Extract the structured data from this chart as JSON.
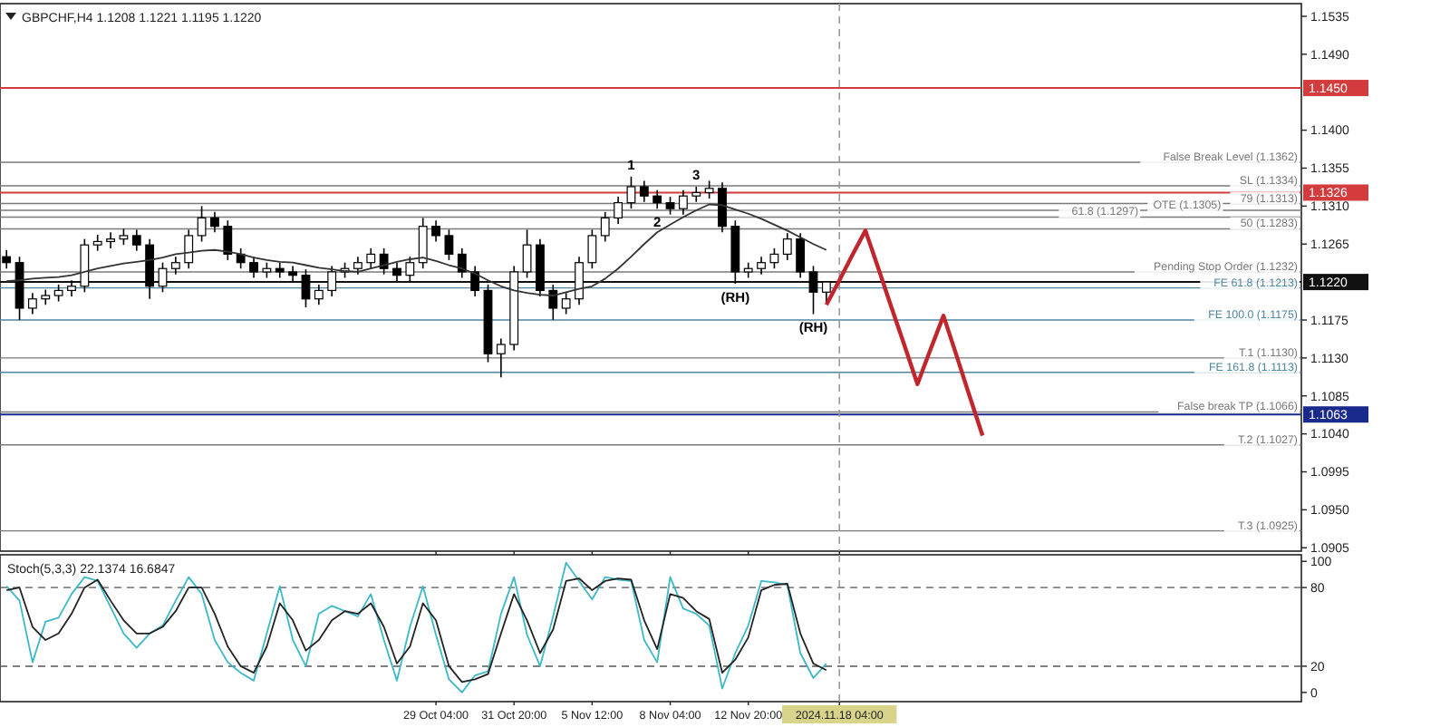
{
  "chart_data": [
    {
      "type": "candlestick",
      "title": "GBPCHF,H4  1.1208 1.1221 1.1195 1.1220",
      "tick_labels": "y",
      "categories": [
        null,
        null,
        null,
        null,
        null,
        null,
        null,
        null,
        null,
        null,
        null,
        null,
        null,
        null,
        null,
        null,
        null,
        null,
        null,
        null,
        null,
        null,
        null,
        null,
        null,
        null,
        null,
        null,
        null,
        null,
        null,
        null,
        null,
        "29 Oct 04:00",
        null,
        null,
        null,
        null,
        null,
        "31 Oct 20:00",
        null,
        null,
        null,
        null,
        null,
        "5 Nov 12:00",
        null,
        null,
        null,
        null,
        null,
        "8 Nov 04:00",
        null,
        null,
        null,
        null,
        null,
        "12 Nov 20:00",
        null,
        null,
        null,
        null,
        null,
        null,
        "2024.11.18 04:00",
        null,
        null,
        null,
        null,
        null,
        null,
        null,
        null,
        null,
        null,
        null,
        null,
        null,
        null,
        null,
        null,
        null,
        null,
        null,
        null,
        null,
        null,
        null,
        null,
        null,
        null,
        null,
        null,
        null,
        null,
        null,
        null,
        null,
        null,
        null
      ],
      "ylim": [
        1.0901,
        1.155
      ],
      "yticks": [
        1.1535,
        {
          "value": 1.149,
          "label": "1.1490"
        },
        {
          "value": 1.14,
          "label": "1.1400"
        },
        1.1355,
        {
          "value": 1.131,
          "label": "1.1310"
        },
        1.1265,
        1.1175,
        {
          "value": 1.113,
          "label": "1.1130"
        },
        1.1085,
        {
          "value": 1.104,
          "label": "1.1040"
        },
        1.0995,
        {
          "value": 1.095,
          "label": "1.0950"
        },
        1.0905
      ],
      "ohlc": [
        [
          1.125,
          1.1258,
          1.1236,
          1.1243
        ],
        [
          1.1243,
          1.125,
          1.1175,
          1.1189
        ],
        [
          1.1189,
          1.1207,
          1.1182,
          1.12
        ],
        [
          1.12,
          1.1211,
          1.1193,
          1.1204
        ],
        [
          1.1204,
          1.1217,
          1.1197,
          1.121
        ],
        [
          1.121,
          1.1222,
          1.1203,
          1.1215
        ],
        [
          1.1215,
          1.1271,
          1.1208,
          1.1264
        ],
        [
          1.1264,
          1.1276,
          1.1257,
          1.1268
        ],
        [
          1.1268,
          1.1279,
          1.126,
          1.1271
        ],
        [
          1.1271,
          1.1283,
          1.1264,
          1.1275
        ],
        [
          1.1275,
          1.1282,
          1.1257,
          1.1264
        ],
        [
          1.1264,
          1.1271,
          1.12,
          1.1215
        ],
        [
          1.1215,
          1.1243,
          1.1208,
          1.1236
        ],
        [
          1.1236,
          1.125,
          1.1229,
          1.1243
        ],
        [
          1.1243,
          1.1282,
          1.1236,
          1.1275
        ],
        [
          1.1275,
          1.131,
          1.1268,
          1.1296
        ],
        [
          1.1296,
          1.1303,
          1.1279,
          1.1286
        ],
        [
          1.1286,
          1.1293,
          1.1246,
          1.1253
        ],
        [
          1.1253,
          1.126,
          1.1236,
          1.1243
        ],
        [
          1.1243,
          1.125,
          1.1225,
          1.1232
        ],
        [
          1.1232,
          1.1243,
          1.1225,
          1.1236
        ],
        [
          1.1236,
          1.1243,
          1.1225,
          1.1232
        ],
        [
          1.1232,
          1.1239,
          1.1221,
          1.1228
        ],
        [
          1.1228,
          1.1235,
          1.119,
          1.12
        ],
        [
          1.12,
          1.1217,
          1.1193,
          1.121
        ],
        [
          1.121,
          1.1239,
          1.1203,
          1.1232
        ],
        [
          1.1232,
          1.1243,
          1.1225,
          1.1236
        ],
        [
          1.1236,
          1.125,
          1.1229,
          1.1243
        ],
        [
          1.1243,
          1.126,
          1.1236,
          1.1253
        ],
        [
          1.1253,
          1.126,
          1.1229,
          1.1236
        ],
        [
          1.1236,
          1.1243,
          1.1221,
          1.1228
        ],
        [
          1.1228,
          1.125,
          1.1221,
          1.1243
        ],
        [
          1.1243,
          1.1296,
          1.1236,
          1.1286
        ],
        [
          1.1286,
          1.1293,
          1.1268,
          1.1275
        ],
        [
          1.1275,
          1.1282,
          1.1246,
          1.1253
        ],
        [
          1.1253,
          1.126,
          1.1225,
          1.1232
        ],
        [
          1.1232,
          1.1239,
          1.1203,
          1.121
        ],
        [
          1.121,
          1.1217,
          1.1125,
          1.1135
        ],
        [
          1.1135,
          1.1153,
          1.1107,
          1.1146
        ],
        [
          1.1146,
          1.1239,
          1.1139,
          1.1232
        ],
        [
          1.1232,
          1.1282,
          1.1225,
          1.1264
        ],
        [
          1.1264,
          1.1271,
          1.1203,
          1.121
        ],
        [
          1.121,
          1.1217,
          1.1175,
          1.1189
        ],
        [
          1.1189,
          1.1207,
          1.1182,
          1.12
        ],
        [
          1.12,
          1.125,
          1.1193,
          1.1243
        ],
        [
          1.1243,
          1.1282,
          1.1236,
          1.1275
        ],
        [
          1.1275,
          1.1303,
          1.1268,
          1.1296
        ],
        [
          1.1296,
          1.1321,
          1.1289,
          1.1314
        ],
        [
          1.1314,
          1.1345,
          1.1307,
          1.1333
        ],
        [
          1.1333,
          1.134,
          1.1315,
          1.1322
        ],
        [
          1.1322,
          1.1329,
          1.1307,
          1.1314
        ],
        [
          1.1314,
          1.1321,
          1.13,
          1.1307
        ],
        [
          1.1307,
          1.1329,
          1.13,
          1.1322
        ],
        [
          1.1322,
          1.1333,
          1.1315,
          1.1326
        ],
        [
          1.1326,
          1.134,
          1.1319,
          1.1331
        ],
        [
          1.1331,
          1.1338,
          1.1279,
          1.1286
        ],
        [
          1.1286,
          1.1293,
          1.1218,
          1.1232
        ],
        [
          1.1232,
          1.1243,
          1.1225,
          1.1236
        ],
        [
          1.1236,
          1.125,
          1.1229,
          1.1243
        ],
        [
          1.1243,
          1.126,
          1.1236,
          1.1253
        ],
        [
          1.1253,
          1.1278,
          1.1246,
          1.1271
        ],
        [
          1.1271,
          1.1278,
          1.1225,
          1.1232
        ],
        [
          1.1232,
          1.1239,
          1.1182,
          1.1208
        ],
        [
          1.1208,
          1.1221,
          1.1195,
          1.122
        ],
        null,
        null,
        null,
        null,
        null,
        null,
        null,
        null,
        null,
        null,
        null,
        null,
        null,
        null,
        null,
        null,
        null,
        null,
        null,
        null,
        null,
        null,
        null,
        null,
        null,
        null,
        null,
        null,
        null,
        null,
        null,
        null,
        null,
        null,
        null,
        null
      ],
      "series": [
        {
          "type": "line",
          "color": "#333333",
          "values": [
            1.1221,
            1.1222,
            1.1224,
            1.1225,
            1.1226,
            1.1228,
            1.1232,
            1.1236,
            1.1239,
            1.1242,
            1.1244,
            1.1246,
            1.1249,
            1.1253,
            1.1255,
            1.1257,
            1.1258,
            1.1256,
            1.1253,
            1.1249,
            1.1246,
            1.1244,
            1.1243,
            1.124,
            1.1237,
            1.1235,
            1.1233,
            1.1232,
            1.1236,
            1.124,
            1.1244,
            1.1247,
            1.1249,
            1.1245,
            1.124,
            1.1236,
            1.123,
            1.1222,
            1.1215,
            1.121,
            1.1207,
            1.1205,
            1.1204,
            1.1208,
            1.1212,
            1.1215,
            1.1224,
            1.1236,
            1.125,
            1.1265,
            1.1279,
            1.1288,
            1.1297,
            1.1305,
            1.1312,
            1.1311,
            1.1306,
            1.1301,
            1.1295,
            1.1288,
            1.1281,
            1.1273,
            1.1265,
            1.1258,
            null,
            null,
            null,
            null,
            null,
            null,
            null,
            null,
            null,
            null,
            null,
            null,
            null,
            null,
            null,
            null,
            null,
            null,
            null,
            null,
            null,
            null,
            null,
            null,
            null,
            null,
            null,
            null,
            null,
            null,
            null,
            null,
            null,
            null,
            null,
            null
          ]
        },
        {
          "type": "line",
          "color": "#c0262d",
          "values": [
            null,
            null,
            null,
            null,
            null,
            null,
            null,
            null,
            null,
            null,
            null,
            null,
            null,
            null,
            null,
            null,
            null,
            null,
            null,
            null,
            null,
            null,
            null,
            null,
            null,
            null,
            null,
            null,
            null,
            null,
            null,
            null,
            null,
            null,
            null,
            null,
            null,
            null,
            null,
            null,
            null,
            null,
            null,
            null,
            null,
            null,
            null,
            null,
            null,
            null,
            null,
            null,
            null,
            null,
            null,
            null,
            null,
            null,
            null,
            null,
            null,
            null,
            null,
            1.1193,
            1.1222,
            1.1252,
            1.1281,
            1.1236,
            1.119,
            1.1145,
            1.1099,
            1.114,
            1.118,
            1.1133,
            1.1085,
            1.1038,
            null,
            null,
            null,
            null,
            null,
            null,
            null,
            null,
            null,
            null,
            null,
            null,
            null,
            null,
            null,
            null,
            null,
            null,
            null,
            null,
            null,
            null,
            null,
            null
          ]
        }
      ],
      "ref_lines": [
        {
          "axis": "y",
          "value": 1.145,
          "label": "1.1450",
          "color": "#d23c3c",
          "line_style": "solid"
        },
        {
          "axis": "y",
          "value": 1.1326,
          "label": "1.1326",
          "color": "#d23c3c",
          "line_style": "solid"
        },
        {
          "axis": "y",
          "value": 1.122,
          "label": "1.1220",
          "color": "#111111",
          "line_style": "solid"
        },
        {
          "axis": "y",
          "value": 1.1063,
          "label": "1.1063",
          "color": "#1a2a8c",
          "line_style": "solid"
        },
        {
          "axis": "y",
          "value": 1.1362,
          "label": "False Break Level (1.1362)",
          "color": "#7a7a7a"
        },
        {
          "axis": "y",
          "value": 1.1334,
          "label": "SL (1.1334)",
          "color": "#7a7a7a"
        },
        {
          "axis": "y",
          "value": 1.1313,
          "label": "79 (1.1313)",
          "color": "#7a7a7a"
        },
        {
          "axis": "y",
          "value": 1.1305,
          "label": "OTE (1.1305)",
          "color": "#7a7a7a"
        },
        {
          "axis": "y",
          "value": 1.1297,
          "label": "61.8 (1.1297)",
          "color": "#7a7a7a"
        },
        {
          "axis": "y",
          "value": 1.1283,
          "label": "50 (1.1283)",
          "color": "#7a7a7a"
        },
        {
          "axis": "y",
          "value": 1.1232,
          "label": "Pending Stop Order (1.1232)",
          "color": "#7a7a7a"
        },
        {
          "axis": "y",
          "value": 1.1213,
          "label": "FE 61.8 (1.1213)",
          "color": "#4f86a0"
        },
        {
          "axis": "y",
          "value": 1.1175,
          "label": "FE 100.0 (1.1175)",
          "color": "#4f86a0"
        },
        {
          "axis": "y",
          "value": 1.113,
          "label": "T.1 (1.1130)",
          "color": "#7a7a7a"
        },
        {
          "axis": "y",
          "value": 1.1113,
          "label": "FE 161.8 (1.1113)",
          "color": "#4f86a0"
        },
        {
          "axis": "y",
          "value": 1.1066,
          "label": "False break TP (1.1066)",
          "color": "#7a7a7a"
        },
        {
          "axis": "y",
          "value": 1.1027,
          "label": "T.2 (1.1027)",
          "color": "#7a7a7a"
        },
        {
          "axis": "y",
          "value": 1.0925,
          "label": "T.3 (1.0925)",
          "color": "#7a7a7a"
        },
        {
          "axis": "x",
          "value": "2024.11.18 04:00",
          "color": "#999999",
          "line_style": "dashed"
        }
      ],
      "annotations": [
        "1",
        "2",
        "3",
        "(RH)",
        "(RH)"
      ]
    },
    {
      "type": "line",
      "title": "Stoch(5,3,3) 22.1374 16.6847",
      "categories": [
        null,
        null,
        null,
        null,
        null,
        null,
        null,
        null,
        null,
        null,
        null,
        null,
        null,
        null,
        null,
        null,
        null,
        null,
        null,
        null,
        null,
        null,
        null,
        null,
        null,
        null,
        null,
        null,
        null,
        null,
        null,
        null,
        null,
        "29 Oct 04:00",
        null,
        null,
        null,
        null,
        null,
        "31 Oct 20:00",
        null,
        null,
        null,
        null,
        null,
        "5 Nov 12:00",
        null,
        null,
        null,
        null,
        null,
        "8 Nov 04:00",
        null,
        null,
        null,
        null,
        null,
        "12 Nov 20:00",
        null,
        null,
        null,
        null,
        null,
        null,
        "2024.11.18 04:00",
        null,
        null,
        null,
        null,
        null,
        null,
        null,
        null,
        null,
        null,
        null,
        null,
        null,
        null,
        null,
        null,
        null,
        null,
        null,
        null,
        null,
        null,
        null,
        null,
        null,
        null,
        null,
        null,
        null,
        null,
        null,
        null,
        null,
        null,
        null
      ],
      "ylim": [
        -7,
        105
      ],
      "yticks": [
        0,
        20,
        80,
        100
      ],
      "series": [
        {
          "color": "#3cb8c8",
          "values": [
            81,
            70,
            23,
            54,
            57,
            75,
            88,
            85,
            65,
            45,
            34,
            45,
            51,
            70,
            88,
            75,
            40,
            23,
            15,
            9,
            45,
            81,
            40,
            20,
            60,
            66,
            62,
            58,
            75,
            40,
            9,
            50,
            81,
            44,
            10,
            0,
            13,
            16,
            60,
            88,
            44,
            20,
            58,
            99,
            85,
            71,
            88,
            86,
            85,
            40,
            23,
            88,
            64,
            60,
            51,
            3,
            30,
            51,
            85,
            84,
            82,
            30,
            11,
            22,
            null,
            null,
            null,
            null,
            null,
            null,
            null,
            null,
            null,
            null,
            null,
            null,
            null,
            null,
            null,
            null,
            null,
            null,
            null,
            null,
            null,
            null,
            null,
            null,
            null,
            null,
            null,
            null,
            null,
            null,
            null,
            null,
            null,
            null,
            null,
            null
          ]
        },
        {
          "color": "#222222",
          "values": [
            78,
            80,
            50,
            40,
            45,
            60,
            80,
            86,
            70,
            55,
            45,
            45,
            50,
            62,
            80,
            80,
            60,
            35,
            20,
            15,
            35,
            68,
            55,
            32,
            40,
            55,
            62,
            60,
            68,
            50,
            22,
            35,
            68,
            55,
            20,
            8,
            10,
            14,
            45,
            75,
            55,
            30,
            48,
            85,
            87,
            78,
            85,
            87,
            86,
            55,
            33,
            75,
            72,
            62,
            56,
            15,
            25,
            42,
            78,
            82,
            83,
            45,
            22,
            17,
            null,
            null,
            null,
            null,
            null,
            null,
            null,
            null,
            null,
            null,
            null,
            null,
            null,
            null,
            null,
            null,
            null,
            null,
            null,
            null,
            null,
            null,
            null,
            null,
            null,
            null,
            null,
            null,
            null,
            null,
            null,
            null,
            null,
            null,
            null,
            null
          ]
        }
      ],
      "ref_lines": [
        {
          "axis": "y",
          "value": 80,
          "color": "#555555",
          "line_style": "dashed"
        },
        {
          "axis": "y",
          "value": 20,
          "color": "#555555",
          "line_style": "dashed"
        },
        {
          "axis": "x",
          "value": "2024.11.18 04:00",
          "color": "#999999",
          "line_style": "dashed"
        }
      ]
    }
  ]
}
